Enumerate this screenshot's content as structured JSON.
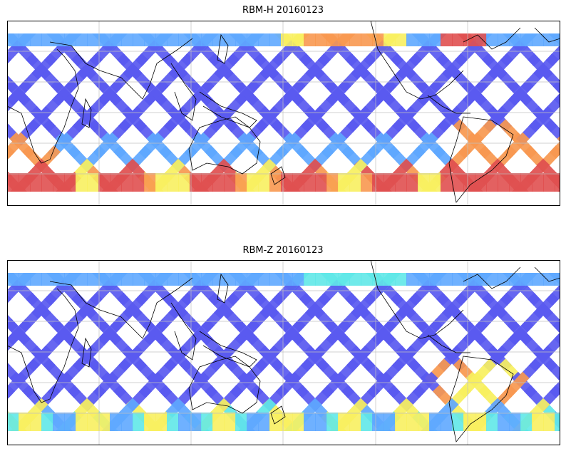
{
  "panels": [
    {
      "title": "RBM-H 20160123",
      "variant": "H"
    },
    {
      "title": "RBM-Z 20160123",
      "variant": "Z"
    }
  ],
  "colors": {
    "swath_low": "#5a5af0",
    "swath_mid": "#5fa8ff",
    "swath_cyan": "#60e8e8",
    "swath_yellow": "#f8f060",
    "swath_orange": "#f89850",
    "swath_red": "#e05050",
    "coastline": "#000000",
    "grid": "#c0c0c0",
    "frame": "#000000"
  }
}
